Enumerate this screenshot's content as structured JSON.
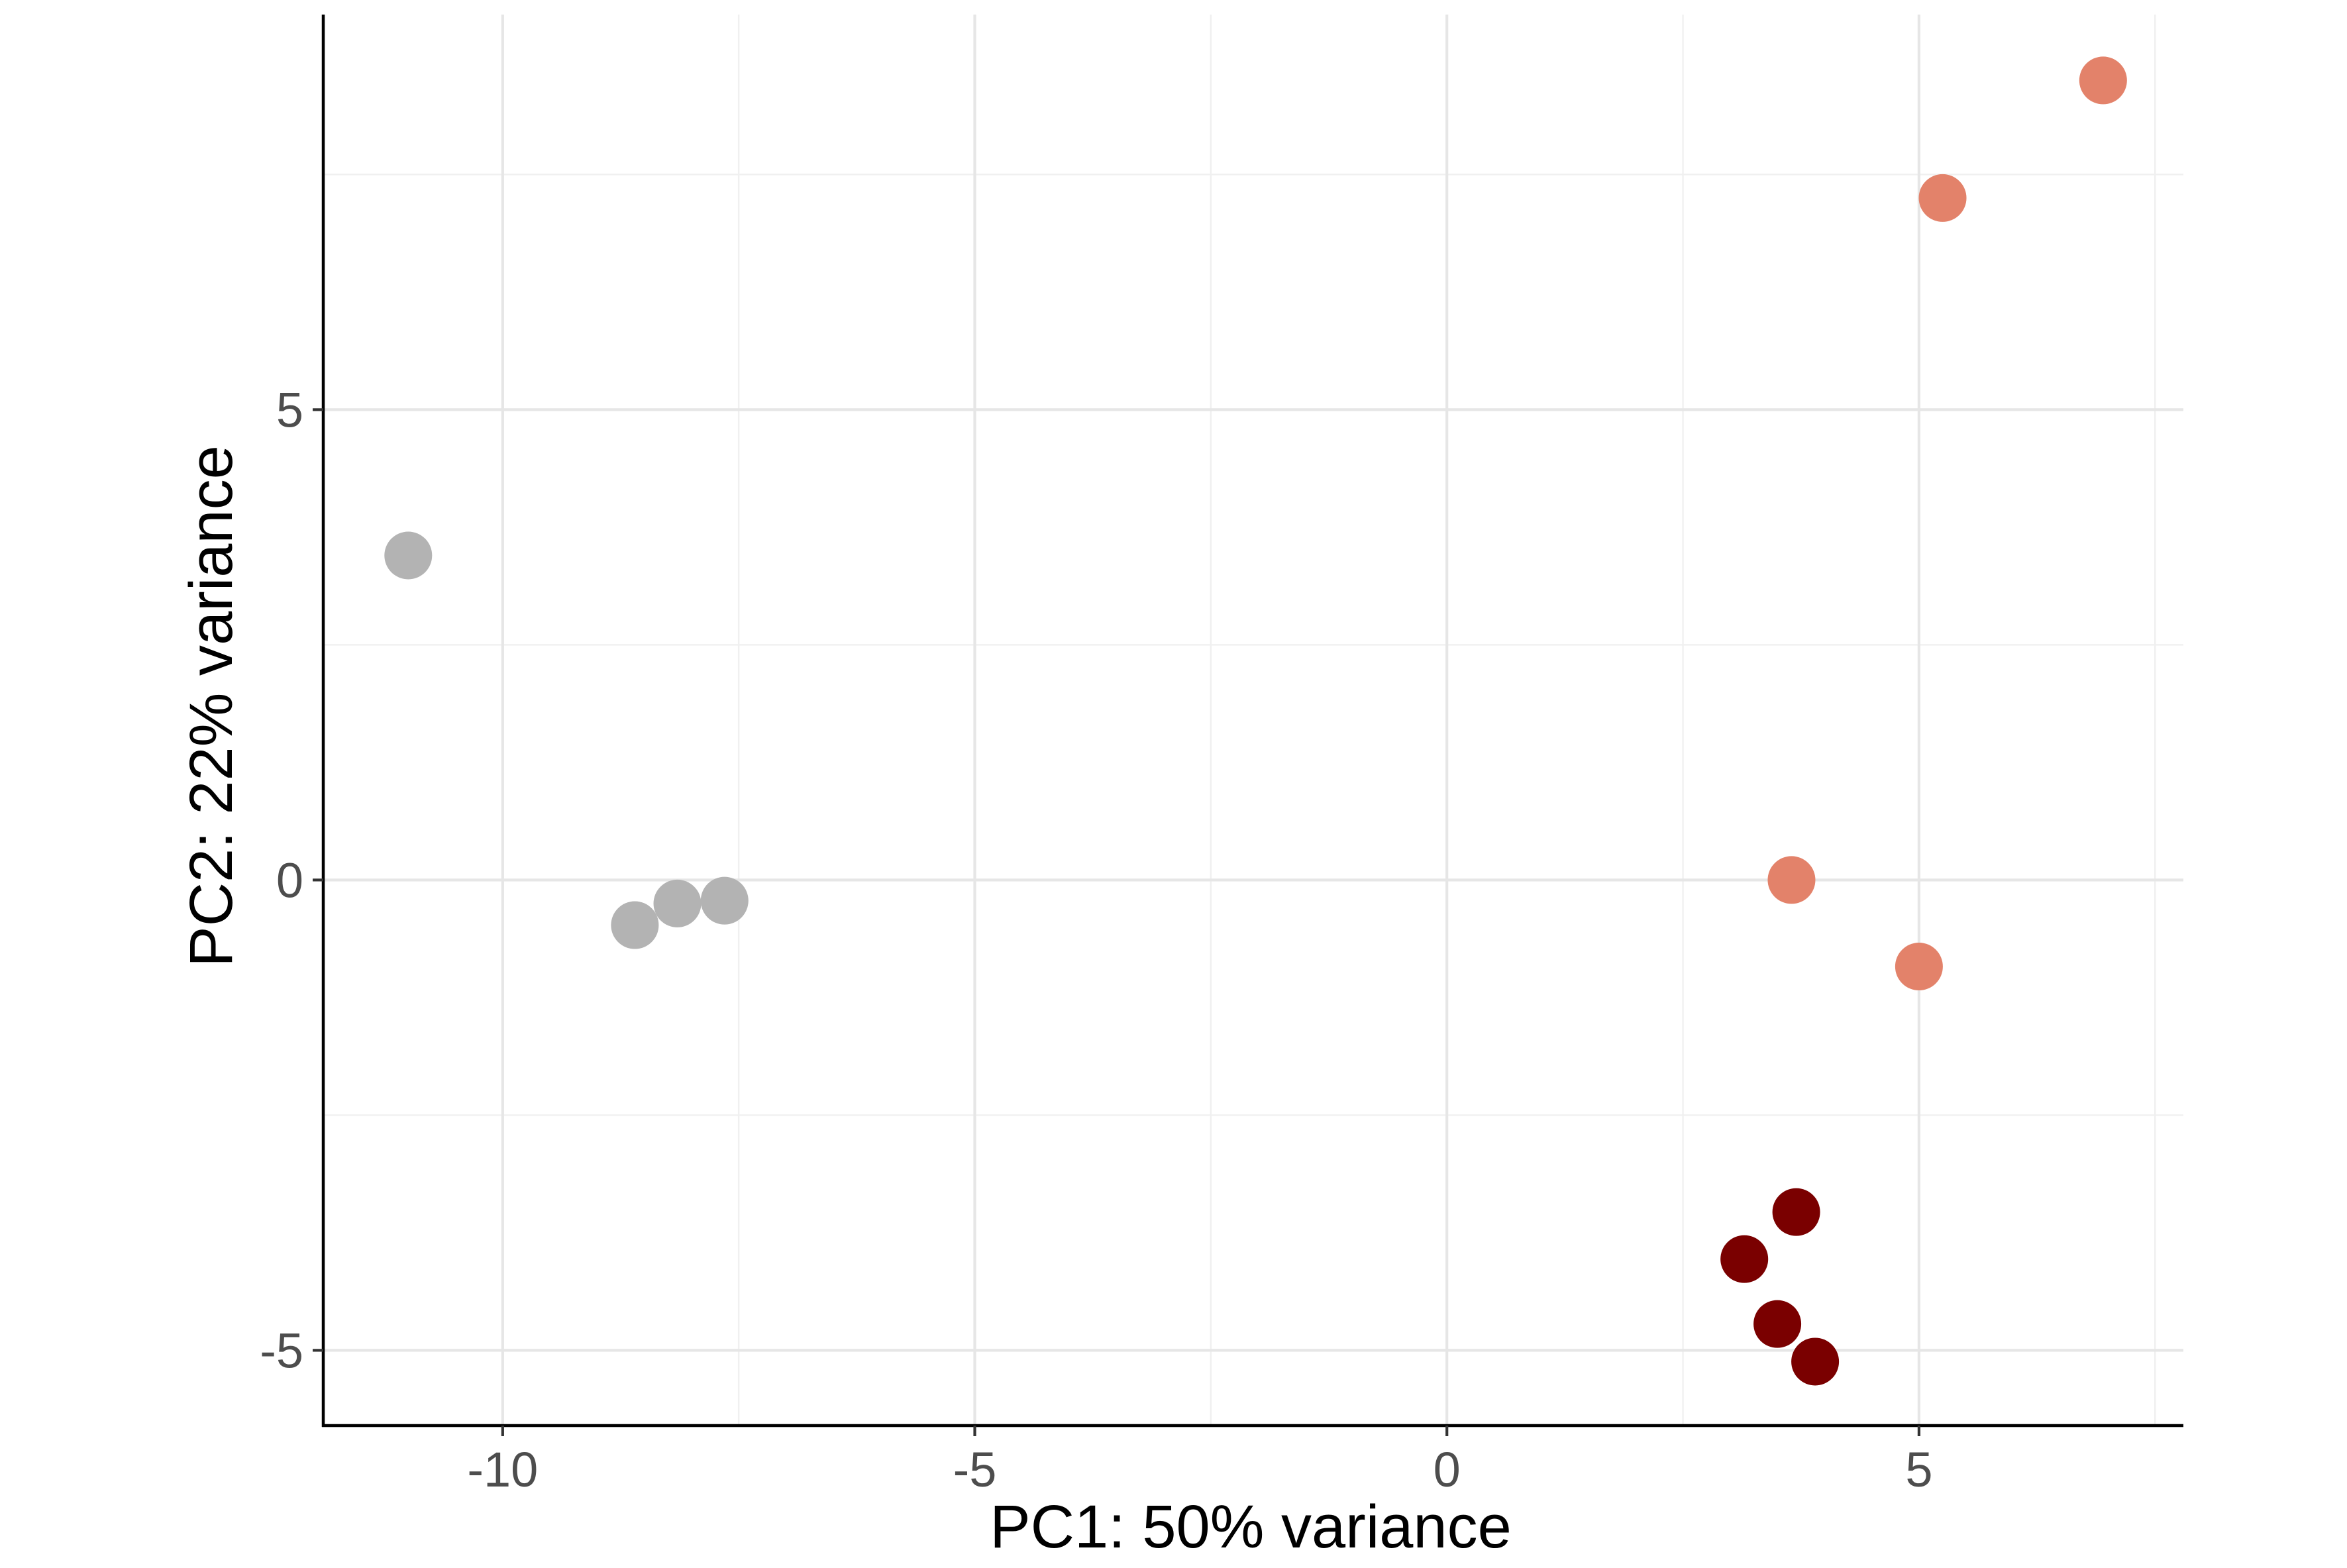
{
  "chart_data": {
    "type": "scatter",
    "title": "",
    "xlabel": "PC1: 50% variance",
    "ylabel": "PC2: 22% variance",
    "xlim": [
      -11.9,
      7.8
    ],
    "ylim": [
      -5.8,
      9.2
    ],
    "x_ticks": [
      {
        "value": -10,
        "label": "-10"
      },
      {
        "value": -5,
        "label": "-5"
      },
      {
        "value": 0,
        "label": "0"
      },
      {
        "value": 5,
        "label": "5"
      }
    ],
    "y_ticks": [
      {
        "value": -5,
        "label": "-5"
      },
      {
        "value": 0,
        "label": "0"
      },
      {
        "value": 5,
        "label": "5"
      }
    ],
    "x_minor_grid": [
      -7.5,
      -2.5,
      2.5,
      7.5
    ],
    "y_minor_grid": [
      -2.5,
      2.5,
      7.5
    ],
    "grid": true,
    "legend": "none",
    "series": [
      {
        "color": "#b3b3b3",
        "points": [
          {
            "x": -11.0,
            "y": 3.45
          },
          {
            "x": -8.6,
            "y": -0.48
          },
          {
            "x": -8.15,
            "y": -0.25
          },
          {
            "x": -7.65,
            "y": -0.22
          }
        ]
      },
      {
        "color": "#e3826a",
        "points": [
          {
            "x": 6.95,
            "y": 8.5
          },
          {
            "x": 5.25,
            "y": 7.25
          },
          {
            "x": 3.65,
            "y": 0.0
          },
          {
            "x": 5.0,
            "y": -0.92
          }
        ]
      },
      {
        "color": "#7a0000",
        "points": [
          {
            "x": 3.7,
            "y": -3.53
          },
          {
            "x": 3.15,
            "y": -4.03
          },
          {
            "x": 3.5,
            "y": -4.72
          },
          {
            "x": 3.9,
            "y": -5.12
          }
        ]
      }
    ]
  }
}
